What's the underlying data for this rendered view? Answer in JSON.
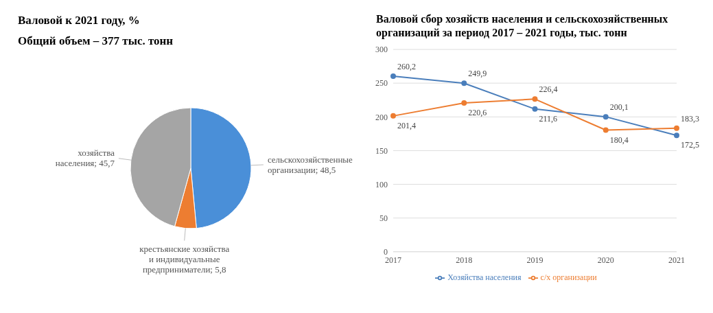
{
  "chart_data": [
    {
      "type": "pie",
      "title": "Валовой к  2021 году, %",
      "subtitle": "Общий объем – 377 тыс. тонн",
      "categories": [
        "сельскохозяйственные организации",
        "крестьянские хозяйства и индивидуальные предприниматели",
        "хозяйства населения"
      ],
      "values": [
        48.5,
        5.8,
        45.7
      ],
      "value_labels": [
        "; 48,5",
        "; 5,8",
        "; 45,7"
      ],
      "colors": [
        "#4a8fd8",
        "#ed7d31",
        "#a5a5a5"
      ]
    },
    {
      "type": "line",
      "title": "Валовой сбор хозяйств населения и сельскохозяйственных организаций за период 2017 – 2021 годы, тыс. тонн",
      "categories": [
        "2017",
        "2018",
        "2019",
        "2020",
        "2021"
      ],
      "series": [
        {
          "name": "Хозяйства населения",
          "color": "#4a7ebb",
          "values": [
            260.2,
            249.9,
            211.6,
            200.1,
            172.5
          ],
          "value_labels": [
            "260,2",
            "249,9",
            "211,6",
            "200,1",
            "172,5"
          ]
        },
        {
          "name": "с/х организации",
          "color": "#ed7d31",
          "values": [
            201.4,
            220.6,
            226.4,
            180.4,
            183.3
          ],
          "value_labels": [
            "201,4",
            "220,6",
            "226,4",
            "180,4",
            "183,3"
          ]
        }
      ],
      "ylim": [
        0,
        300
      ],
      "yticks": [
        0,
        50,
        100,
        150,
        200,
        250,
        300
      ],
      "grid": "y",
      "legend": "bottom",
      "marker": "circle",
      "line_style": "solid"
    }
  ]
}
